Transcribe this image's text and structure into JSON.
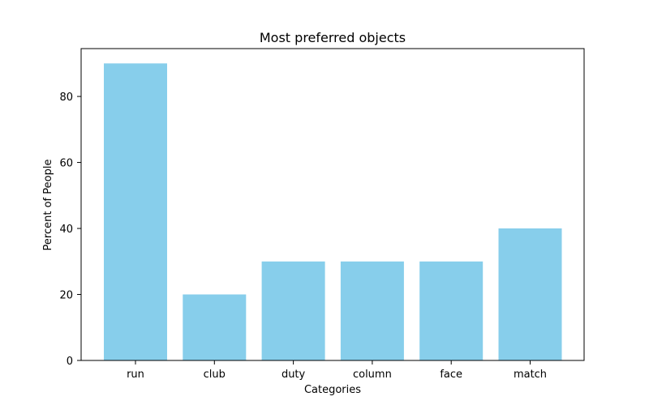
{
  "chart_data": {
    "type": "bar",
    "title": "Most preferred objects",
    "xlabel": "Categories",
    "ylabel": "Percent of People",
    "categories": [
      "run",
      "club",
      "duty",
      "column",
      "face",
      "match"
    ],
    "values": [
      90,
      20,
      30,
      30,
      30,
      40
    ],
    "ylim": [
      0,
      94.5
    ],
    "yticks": [
      0,
      20,
      40,
      60,
      80
    ],
    "grid": false,
    "legend": "none",
    "colors": {
      "bar": "#87ceeb",
      "axis": "#000000",
      "background": "#ffffff"
    }
  }
}
